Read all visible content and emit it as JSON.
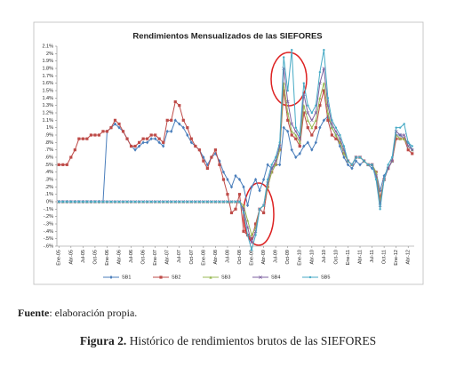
{
  "chart_data": {
    "type": "line",
    "title": "Rendimientos Mensualizados de las SIEFORES",
    "categories": [
      "Ene-05",
      null,
      null,
      "Abr-05",
      null,
      null,
      "Jul-05",
      null,
      null,
      "Oct-05",
      null,
      null,
      "Ene-06",
      null,
      null,
      "Abr-06",
      null,
      null,
      "Jul-06",
      null,
      null,
      "Oct-06",
      null,
      null,
      "Ene-07",
      null,
      null,
      "Abr-07",
      null,
      null,
      "Jul-07",
      null,
      null,
      "Oct-07",
      null,
      null,
      "Ene-08",
      null,
      null,
      "Abr-08",
      null,
      null,
      "Jul-08",
      null,
      null,
      "Oct-08",
      null,
      null,
      "Ene-09",
      null,
      null,
      "Abr-09",
      null,
      null,
      "Jul-09",
      null,
      null,
      "Oct-09",
      null,
      null,
      "Ene-10",
      null,
      null,
      "Abr-10",
      null,
      null,
      "Jul-10",
      null,
      null,
      "Oct-10",
      null,
      null,
      "Ene-11",
      null,
      null,
      "Abr-11",
      null,
      null,
      "Jul-11",
      null,
      null,
      "Oct-11",
      null,
      null,
      "Ene-12",
      null,
      null,
      "Abr-12",
      null
    ],
    "series": [
      {
        "name": "SB1",
        "color": "#4a7ebb",
        "marker": "diamond",
        "values": [
          0,
          0,
          0,
          0,
          0,
          0,
          0,
          0,
          0,
          0,
          0,
          0,
          0.95,
          1.0,
          1.05,
          1.0,
          0.95,
          0.85,
          0.75,
          0.7,
          0.75,
          0.8,
          0.8,
          0.85,
          0.85,
          0.8,
          0.75,
          0.95,
          0.95,
          1.1,
          1.05,
          1.0,
          0.9,
          0.8,
          0.75,
          0.7,
          0.6,
          0.5,
          0.6,
          0.65,
          0.55,
          0.4,
          0.3,
          0.2,
          0.35,
          0.3,
          0.2,
          -0.05,
          0.2,
          0.3,
          0.15,
          0.3,
          0.5,
          0.45,
          0.5,
          0.5,
          1.0,
          0.95,
          0.7,
          0.6,
          0.65,
          0.75,
          0.8,
          0.7,
          0.8,
          1.0,
          1.1,
          1.15,
          1.0,
          0.9,
          0.75,
          0.6,
          0.5,
          0.45,
          0.55,
          0.5,
          0.55,
          0.5,
          0.45,
          0.4,
          0.15,
          0.35,
          0.45,
          0.55,
          0.9,
          0.9,
          0.85,
          0.8,
          0.7
        ]
      },
      {
        "name": "SB2",
        "color": "#be4b48",
        "marker": "square",
        "values": [
          0.5,
          0.5,
          0.5,
          0.6,
          0.7,
          0.85,
          0.85,
          0.85,
          0.9,
          0.9,
          0.9,
          0.95,
          0.95,
          1.0,
          1.1,
          1.05,
          0.95,
          0.85,
          0.75,
          0.75,
          0.8,
          0.85,
          0.85,
          0.9,
          0.9,
          0.85,
          0.8,
          1.1,
          1.1,
          1.35,
          1.3,
          1.1,
          1.0,
          0.85,
          0.75,
          0.7,
          0.55,
          0.45,
          0.6,
          0.7,
          0.5,
          0.3,
          0.1,
          -0.15,
          -0.1,
          0.1,
          -0.4,
          -0.45,
          -0.5,
          -0.3,
          -0.1,
          -0.15,
          0.2,
          0.4,
          0.5,
          0.7,
          1.5,
          1.1,
          0.9,
          0.85,
          0.75,
          1.2,
          1.0,
          0.9,
          1.0,
          1.3,
          1.5,
          1.1,
          0.9,
          0.85,
          0.8,
          0.65,
          0.55,
          0.5,
          0.6,
          0.6,
          0.55,
          0.5,
          0.5,
          0.4,
          0.05,
          0.3,
          0.45,
          0.55,
          0.85,
          0.85,
          0.85,
          0.7,
          0.65
        ]
      },
      {
        "name": "SB3",
        "color": "#98b954",
        "marker": "triangle",
        "values": [
          0,
          0,
          0,
          0,
          0,
          0,
          0,
          0,
          0,
          0,
          0,
          0,
          0,
          0,
          0,
          0,
          0,
          0,
          0,
          0,
          0,
          0,
          0,
          0,
          0,
          0,
          0,
          0,
          0,
          0,
          0,
          0,
          0,
          0,
          0,
          0,
          0,
          0,
          0,
          0,
          0,
          0,
          0,
          0,
          0,
          0,
          -0.05,
          -0.25,
          -0.45,
          -0.35,
          -0.1,
          -0.05,
          0.2,
          0.4,
          0.5,
          0.7,
          1.6,
          1.2,
          0.95,
          0.9,
          0.8,
          1.3,
          1.1,
          1.0,
          1.1,
          1.4,
          1.6,
          1.2,
          1.0,
          0.9,
          0.8,
          0.65,
          0.55,
          0.5,
          0.6,
          0.6,
          0.55,
          0.5,
          0.5,
          0.4,
          0.0,
          0.3,
          0.45,
          0.55,
          0.9,
          0.85,
          0.85,
          0.75,
          0.7
        ]
      },
      {
        "name": "SB4",
        "color": "#7d60a0",
        "marker": "x",
        "values": [
          0,
          0,
          0,
          0,
          0,
          0,
          0,
          0,
          0,
          0,
          0,
          0,
          0,
          0,
          0,
          0,
          0,
          0,
          0,
          0,
          0,
          0,
          0,
          0,
          0,
          0,
          0,
          0,
          0,
          0,
          0,
          0,
          0,
          0,
          0,
          0,
          0,
          0,
          0,
          0,
          0,
          0,
          0,
          0,
          0,
          0,
          -0.1,
          -0.35,
          -0.55,
          -0.4,
          -0.1,
          -0.05,
          0.25,
          0.45,
          0.55,
          0.75,
          1.8,
          1.35,
          1.05,
          0.95,
          0.85,
          1.45,
          1.2,
          1.1,
          1.2,
          1.6,
          1.8,
          1.3,
          1.05,
          0.95,
          0.85,
          0.7,
          0.55,
          0.5,
          0.6,
          0.6,
          0.55,
          0.5,
          0.5,
          0.35,
          -0.05,
          0.3,
          0.45,
          0.55,
          0.95,
          0.9,
          0.9,
          0.75,
          0.7
        ]
      },
      {
        "name": "SB5",
        "color": "#46aac5",
        "marker": "circle",
        "values": [
          0,
          0,
          0,
          0,
          0,
          0,
          0,
          0,
          0,
          0,
          0,
          0,
          0,
          0,
          0,
          0,
          0,
          0,
          0,
          0,
          0,
          0,
          0,
          0,
          0,
          0,
          0,
          0,
          0,
          0,
          0,
          0,
          0,
          0,
          0,
          0,
          0,
          0,
          0,
          0,
          0,
          0,
          0,
          0,
          0,
          0,
          -0.15,
          -0.45,
          -0.65,
          -0.45,
          -0.1,
          -0.05,
          0.3,
          0.5,
          0.6,
          0.8,
          1.95,
          1.5,
          2.05,
          1.0,
          0.9,
          1.6,
          1.3,
          1.2,
          1.3,
          1.75,
          2.05,
          1.4,
          1.1,
          1.0,
          0.9,
          0.75,
          0.55,
          0.5,
          0.6,
          0.6,
          0.55,
          0.5,
          0.5,
          0.3,
          -0.1,
          0.3,
          0.5,
          0.6,
          1.0,
          1.0,
          1.05,
          0.8,
          0.75
        ]
      }
    ],
    "ylim": [
      -0.6,
      2.1
    ],
    "yticks": [
      {
        "value": 2.1,
        "label": "2.1%"
      },
      {
        "value": 2.0,
        "label": "2%"
      },
      {
        "value": 1.9,
        "label": "1.9%"
      },
      {
        "value": 1.8,
        "label": "1.8%"
      },
      {
        "value": 1.7,
        "label": "1.7%"
      },
      {
        "value": 1.6,
        "label": "1.6%"
      },
      {
        "value": 1.5,
        "label": "1.5%"
      },
      {
        "value": 1.4,
        "label": "1.4%"
      },
      {
        "value": 1.3,
        "label": "1.3%"
      },
      {
        "value": 1.2,
        "label": "1.2%"
      },
      {
        "value": 1.1,
        "label": "1.1%"
      },
      {
        "value": 1.0,
        "label": "1%"
      },
      {
        "value": 0.9,
        "label": ".9%"
      },
      {
        "value": 0.8,
        "label": ".8%"
      },
      {
        "value": 0.7,
        "label": ".7%"
      },
      {
        "value": 0.6,
        "label": ".6%"
      },
      {
        "value": 0.5,
        "label": ".5%"
      },
      {
        "value": 0.4,
        "label": ".4%"
      },
      {
        "value": 0.3,
        "label": ".3%"
      },
      {
        "value": 0.2,
        "label": ".2%"
      },
      {
        "value": 0.1,
        "label": ".1%"
      },
      {
        "value": 0,
        "label": "0%"
      },
      {
        "value": -0.1,
        "label": "-.1%"
      },
      {
        "value": -0.2,
        "label": "-.2%"
      },
      {
        "value": -0.3,
        "label": "-.3%"
      },
      {
        "value": -0.4,
        "label": "-.4%"
      },
      {
        "value": -0.5,
        "label": "-.5%"
      },
      {
        "value": -0.6,
        "label": "-.6%"
      }
    ],
    "grid": false,
    "legend": "bottom"
  },
  "source": {
    "label": "Fuente",
    "text": ": elaboración propia."
  },
  "caption": {
    "label": "Figura 2.",
    "text": "Histórico de rendimientos brutos de las SIEFORES"
  }
}
